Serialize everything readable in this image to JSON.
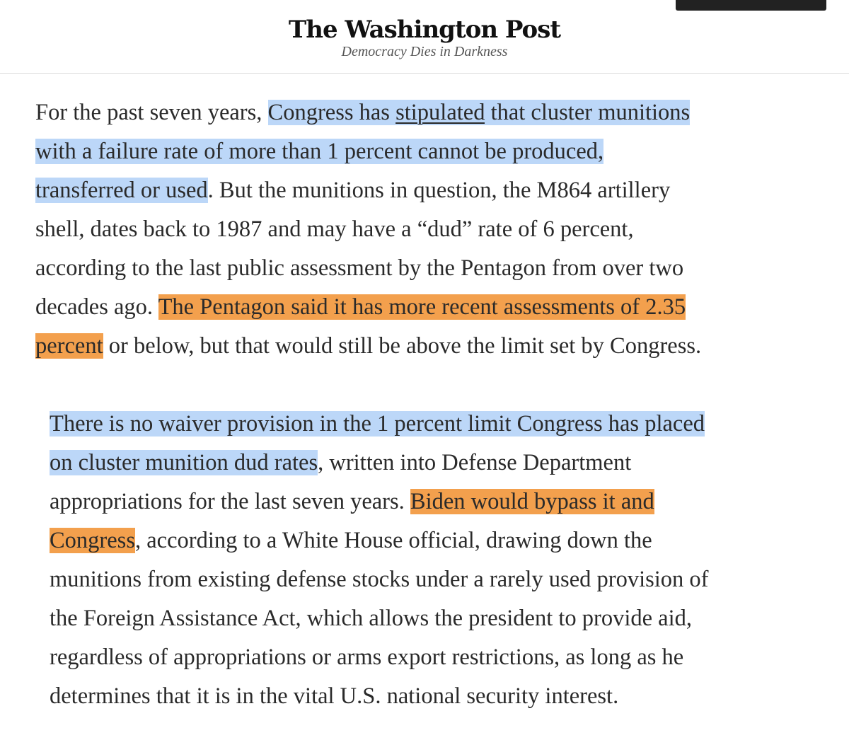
{
  "header": {
    "title": "The Washington Post",
    "tagline": "Democracy Dies in Darkness"
  },
  "paragraphs": [
    {
      "indent": false,
      "lines": [
        [
          {
            "text": "For the past seven years, "
          },
          {
            "text": "Congress has ",
            "highlight": "blue"
          },
          {
            "text": "stipulated",
            "highlight": "blue",
            "link": true
          },
          {
            "text": " that cluster munitions",
            "highlight": "blue"
          }
        ],
        [
          {
            "text": "with a failure rate of more than 1 percent cannot be produced,",
            "highlight": "blue"
          }
        ],
        [
          {
            "text": "transferred or used",
            "highlight": "blue"
          },
          {
            "text": ". But the munitions in question, the M864 artillery"
          }
        ],
        [
          {
            "text": "shell, dates back to 1987 and may have a “dud” rate of 6 percent,"
          }
        ],
        [
          {
            "text": "according to the last public assessment by the Pentagon from over two"
          }
        ],
        [
          {
            "text": "decades ago. "
          },
          {
            "text": "The Pentagon said it has more recent assessments of 2.35",
            "highlight": "orange"
          }
        ],
        [
          {
            "text": "percent",
            "highlight": "orange"
          },
          {
            "text": " or below, but that would still be above the limit set by Congress."
          }
        ]
      ]
    },
    {
      "indent": true,
      "lines": [
        [
          {
            "text": "There is no waiver provision in the 1 percent limit Congress has placed",
            "highlight": "blue"
          }
        ],
        [
          {
            "text": "on cluster munition dud rates",
            "highlight": "blue"
          },
          {
            "text": ", written into Defense Department"
          }
        ],
        [
          {
            "text": "appropriations for the last seven years. "
          },
          {
            "text": "Biden would bypass it and",
            "highlight": "orange"
          }
        ],
        [
          {
            "text": "Congress",
            "highlight": "orange"
          },
          {
            "text": ", according to a White House official, drawing down the"
          }
        ],
        [
          {
            "text": "munitions from existing defense stocks under a rarely used provision of"
          }
        ],
        [
          {
            "text": "the Foreign Assistance Act, which allows the president to provide aid,"
          }
        ],
        [
          {
            "text": "regardless of appropriations or arms export restrictions, as long as he"
          }
        ],
        [
          {
            "text": "determines that it is in the vital U.S. national security interest."
          }
        ]
      ]
    }
  ]
}
